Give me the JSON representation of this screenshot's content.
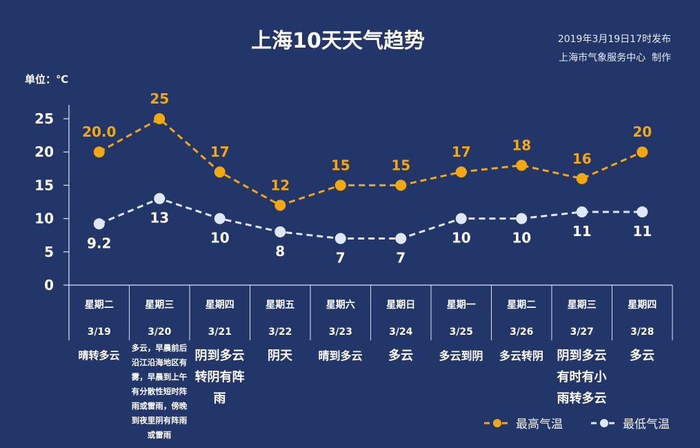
{
  "header": {
    "title": "上海10天天气趋势",
    "issued": "2019年3月19日17时发布",
    "producer": "上海市气象服务中心  制作",
    "unit": "单位：℃"
  },
  "colors": {
    "background": "#22366a",
    "high": "#f5a80a",
    "low": "#dfe8f6",
    "axis": "#dfe6f2"
  },
  "chart_data": {
    "type": "line",
    "title": "上海10天天气趋势",
    "ylabel": "单位：℃",
    "ylim": [
      0,
      25
    ],
    "yticks": [
      "0",
      "5",
      "10",
      "15",
      "20",
      "25"
    ],
    "weekdays": [
      "星期二",
      "星期三",
      "星期四",
      "星期五",
      "星期六",
      "星期日",
      "星期一",
      "星期二",
      "星期三",
      "星期四"
    ],
    "categories": [
      "3/19",
      "3/20",
      "3/21",
      "3/22",
      "3/23",
      "3/24",
      "3/25",
      "3/26",
      "3/27",
      "3/28"
    ],
    "series": [
      {
        "name": "最高气温",
        "values": [
          20,
          25,
          17,
          12,
          15,
          15,
          17,
          18,
          16,
          20
        ],
        "labels": [
          "20.0",
          "25",
          "17",
          "12",
          "15",
          "15",
          "17",
          "18",
          "16",
          "20"
        ]
      },
      {
        "name": "最低气温",
        "values": [
          9.2,
          13,
          10,
          8,
          7,
          7,
          10,
          10,
          11,
          11
        ],
        "labels": [
          "9.2",
          "13",
          "10",
          "8",
          "7",
          "7",
          "10",
          "10",
          "11",
          "11"
        ]
      }
    ],
    "weather": [
      "晴转多云",
      "多云，早晨前后沿江沿海地区有雾，早晨到上午有分散性短时阵雨或雷雨，傍晚到夜里阴有阵雨或雷雨",
      "阴到多云转阴有阵雨",
      "阴天",
      "晴到多云",
      "多云",
      "多云到阴",
      "多云转阴",
      "阴到多云有时有小雨转多云",
      "多云"
    ],
    "legend": "bottom-right"
  }
}
